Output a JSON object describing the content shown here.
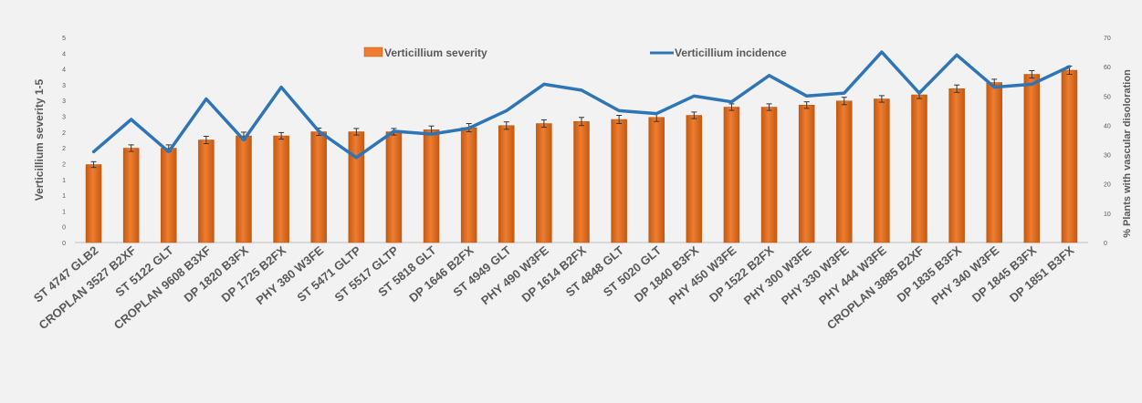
{
  "chart_data": {
    "type": "bar",
    "categories": [
      "ST 4747 GLB2",
      "CROPLAN 3527 B2XF",
      "ST 5122 GLT",
      "CROPLAN 9608 B3XF",
      "DP 1820 B3FX",
      "DP 1725 B2FX",
      "PHY 380 W3FE",
      "ST 5471 GLTP",
      "ST 5517 GLTP",
      "ST 5818 GLT",
      "DP 1646 B2FX",
      "ST 4949 GLT",
      "PHY 490 W3FE",
      "DP 1614 B2FX",
      "ST 4848 GLT",
      "ST 5020 GLT",
      "DP 1840 B3FX",
      "PHY 450 W3FE",
      "DP 1522 B2FX",
      "PHY 300 W3FE",
      "PHY 330 W3FE",
      "PHY 444 W3FE",
      "CROPLAN 3885 B2XF",
      "DP 1835 B3FX",
      "PHY 340 W3FE",
      "DP 1845 B3FX",
      "DP 1851 B3FX"
    ],
    "series": [
      {
        "name": "Verticillium severity",
        "type": "bar",
        "axis": "left",
        "color": "#ed7d31",
        "values": [
          1.9,
          2.3,
          2.3,
          2.5,
          2.6,
          2.6,
          2.7,
          2.7,
          2.7,
          2.75,
          2.8,
          2.85,
          2.9,
          2.95,
          3.0,
          3.05,
          3.1,
          3.3,
          3.3,
          3.35,
          3.45,
          3.5,
          3.6,
          3.75,
          3.9,
          4.1,
          4.2
        ],
        "errors": [
          0.07,
          0.08,
          0.08,
          0.09,
          0.09,
          0.08,
          0.09,
          0.08,
          0.08,
          0.09,
          0.1,
          0.09,
          0.09,
          0.1,
          0.1,
          0.1,
          0.08,
          0.08,
          0.08,
          0.08,
          0.09,
          0.08,
          0.09,
          0.09,
          0.08,
          0.09,
          0.1
        ]
      },
      {
        "name": "Verticillium incidence",
        "type": "line",
        "axis": "right",
        "color": "#2e75b6",
        "values": [
          31,
          42,
          31,
          49,
          35,
          53,
          38,
          29,
          38,
          37,
          39,
          45,
          54,
          52,
          45,
          44,
          50,
          48,
          57,
          50,
          51,
          65,
          51,
          64,
          53,
          54,
          60
        ]
      }
    ],
    "ylabel": "Verticillium severity 1-5",
    "y2label": "% Plants with vascular disoloration",
    "ylim": [
      0,
      5
    ],
    "y2lim": [
      0,
      70
    ],
    "yticks": [
      "5",
      "4",
      "4",
      "3",
      "3",
      "3",
      "2",
      "2",
      "2",
      "1",
      "1",
      "1",
      "0",
      "0"
    ],
    "y2ticks": [
      "70",
      "60",
      "50",
      "40",
      "30",
      "20",
      "10",
      "0"
    ],
    "legend": "top-center",
    "grid": false
  }
}
